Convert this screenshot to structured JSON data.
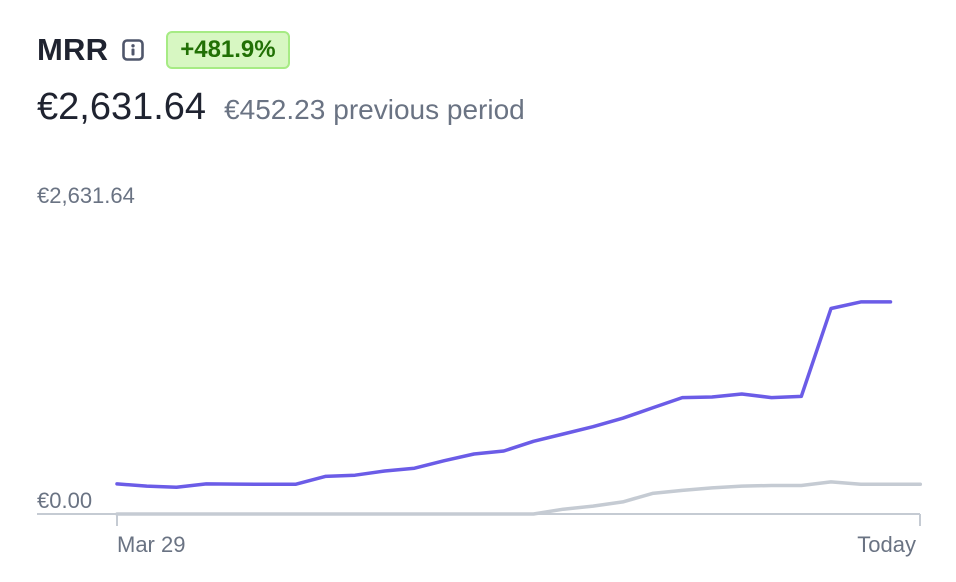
{
  "metric": {
    "title": "MRR",
    "info_icon": "info-icon",
    "change": "+481.9%",
    "current_value": "€2,631.64",
    "previous_value": "€452.23",
    "previous_label": "previous period"
  },
  "colors": {
    "current_series": "#6b5ce7",
    "previous_series": "#c5cbd3",
    "axis": "#c5cbd3",
    "badge_bg": "#d7f7c2",
    "badge_text": "#217005"
  },
  "chart_data": {
    "type": "line",
    "y_tick_labels": [
      "€0.00",
      "€2,631.64"
    ],
    "x_tick_labels": [
      "Mar 29",
      "Today"
    ],
    "ylim": [
      0,
      2631.64
    ],
    "grid": false,
    "series": [
      {
        "values": [
          248,
          230,
          220,
          248,
          247,
          245,
          245,
          310,
          320,
          355,
          378,
          440,
          495,
          520,
          600,
          660,
          720,
          790,
          875,
          960,
          965,
          990,
          960,
          970,
          1695,
          1750,
          1750
        ]
      },
      {
        "values": [
          0,
          0,
          0,
          0,
          0,
          0,
          0,
          0,
          0,
          0,
          0,
          0,
          0,
          0,
          0,
          40,
          65,
          100,
          170,
          195,
          215,
          230,
          235,
          235,
          265,
          245,
          245,
          245
        ]
      }
    ]
  }
}
